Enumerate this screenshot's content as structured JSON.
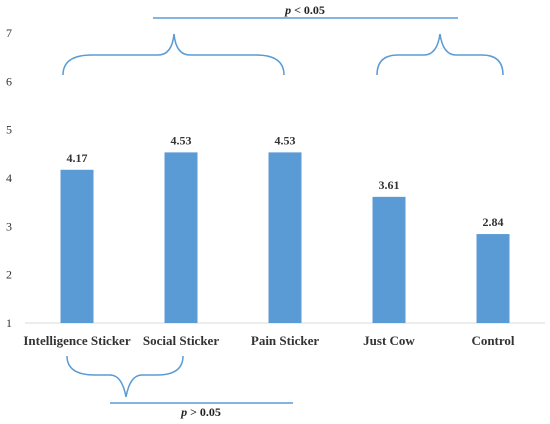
{
  "chart_data": {
    "type": "bar",
    "categories": [
      "Intelligence Sticker",
      "Social Sticker",
      "Pain Sticker",
      "Just Cow",
      "Control"
    ],
    "values": [
      4.17,
      4.53,
      4.53,
      3.61,
      2.84
    ],
    "data_labels": [
      "4.17",
      "4.53",
      "4.53",
      "3.61",
      "2.84"
    ],
    "ylim": [
      1,
      7
    ],
    "yticks": [
      "1",
      "2",
      "3",
      "4",
      "5",
      "6",
      "7"
    ],
    "grid": false,
    "legend": "none",
    "bar_color": "#5b9bd5",
    "annotation_color": "#5b9bd5",
    "annotations": {
      "top": {
        "p": "p",
        "rest": " < 0.05"
      },
      "bottom": {
        "p": "p",
        "rest": " > 0.05"
      }
    }
  }
}
